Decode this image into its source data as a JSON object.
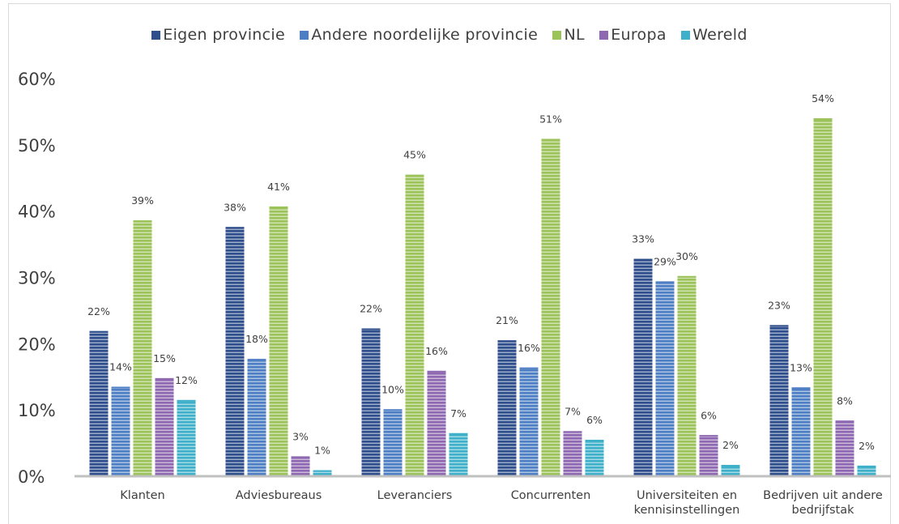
{
  "chart_data": {
    "type": "bar",
    "categories": [
      "Klanten",
      "Adviesbureaus",
      "Leveranciers",
      "Concurrenten",
      "Universiteiten en kennisinstellingen",
      "Bedrijven uit andere bedrijfstak"
    ],
    "series": [
      {
        "name": "Eigen provincie",
        "color": "#2f4e8c",
        "values": [
          22,
          38,
          22,
          21,
          33,
          23
        ],
        "value_labels": [
          21.9,
          37.6,
          22.3,
          20.5,
          32.8,
          22.8
        ]
      },
      {
        "name": "Andere noordelijke provincie",
        "color": "#4e7fc4",
        "values": [
          14,
          18,
          10,
          16,
          29,
          13
        ],
        "value_labels": [
          13.5,
          17.7,
          10.1,
          16.4,
          29.4,
          13.4
        ]
      },
      {
        "name": "NL",
        "color": "#9cc35a",
        "values": [
          39,
          41,
          45,
          51,
          30,
          54
        ],
        "value_labels": [
          38.6,
          40.7,
          45.5,
          50.9,
          30.2,
          54.0
        ]
      },
      {
        "name": "Europa",
        "color": "#8e68b0",
        "values": [
          15,
          3,
          16,
          7,
          6,
          8
        ],
        "value_labels": [
          14.8,
          3.0,
          15.9,
          6.8,
          6.2,
          8.4
        ]
      },
      {
        "name": "Wereld",
        "color": "#3fb0c9",
        "values": [
          12,
          1,
          7,
          6,
          2,
          2
        ],
        "value_labels": [
          11.5,
          0.9,
          6.5,
          5.5,
          1.7,
          1.6
        ]
      }
    ],
    "data_labels": [
      [
        "22%",
        "38%",
        "22%",
        "21%",
        "33%",
        "23%"
      ],
      [
        "14%",
        "18%",
        "10%",
        "16%",
        "29%",
        "13%"
      ],
      [
        "39%",
        "41%",
        "45%",
        "51%",
        "30%",
        "54%"
      ],
      [
        "15%",
        "3%",
        "16%",
        "7%",
        "6%",
        "8%"
      ],
      [
        "12%",
        "1%",
        "7%",
        "6%",
        "2%",
        "2%"
      ]
    ],
    "category_lines": [
      [
        "Klanten"
      ],
      [
        "Adviesbureaus"
      ],
      [
        "Leveranciers"
      ],
      [
        "Concurrenten"
      ],
      [
        "Universiteiten en",
        "kennisinstellingen"
      ],
      [
        "Bedrijven uit andere",
        "bedrijfstak"
      ]
    ],
    "ylim": [
      0,
      60
    ],
    "yticks": [
      "0%",
      "10%",
      "20%",
      "30%",
      "40%",
      "50%",
      "60%"
    ],
    "grid": false,
    "legend": "top",
    "bar_pattern": "horizontal-stripes"
  }
}
